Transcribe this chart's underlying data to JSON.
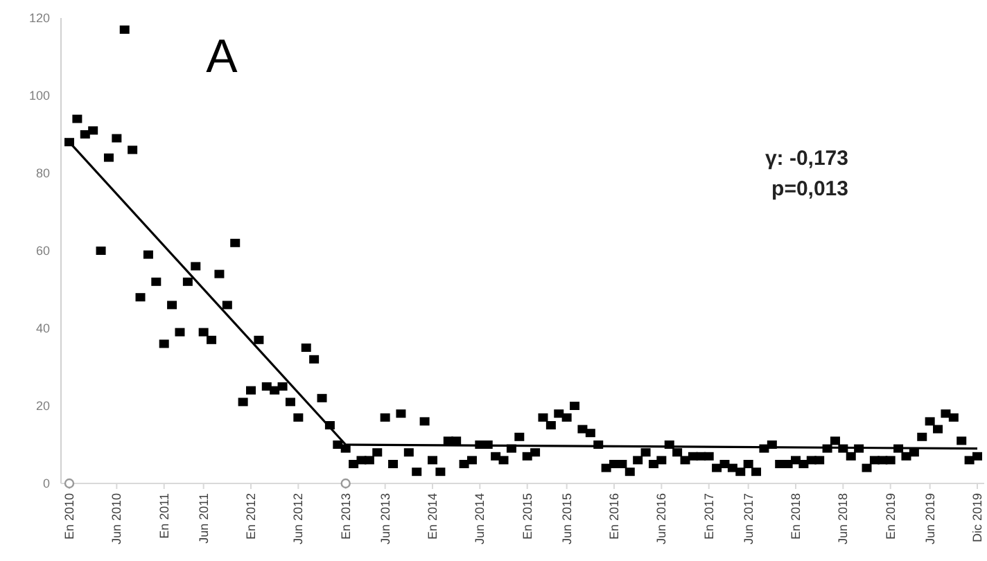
{
  "chart_data": {
    "type": "scatter",
    "title": "A",
    "annotations": [
      "γ: -0,173",
      "p=0,013"
    ],
    "categories": [
      "En 2010",
      null,
      null,
      null,
      null,
      null,
      "Jun 2010",
      null,
      null,
      null,
      null,
      null,
      "En 2011",
      null,
      null,
      null,
      null,
      "Jun 2011",
      null,
      null,
      null,
      null,
      null,
      "En 2012",
      null,
      null,
      null,
      null,
      null,
      "Jun 2012",
      null,
      null,
      null,
      null,
      null,
      "En 2013",
      null,
      null,
      null,
      null,
      "Jun 2013",
      null,
      null,
      null,
      null,
      null,
      "En 2014",
      null,
      null,
      null,
      null,
      null,
      "Jun 2014",
      null,
      null,
      null,
      null,
      null,
      "En 2015",
      null,
      null,
      null,
      null,
      "Jun 2015",
      null,
      null,
      null,
      null,
      null,
      "En 2016",
      null,
      null,
      null,
      null,
      null,
      "Jun 2016",
      null,
      null,
      null,
      null,
      null,
      "En 2017",
      null,
      null,
      null,
      null,
      "Jun 2017",
      null,
      null,
      null,
      null,
      null,
      "En 2018",
      null,
      null,
      null,
      null,
      null,
      "Jun 2018",
      null,
      null,
      null,
      null,
      null,
      "En 2019",
      null,
      null,
      null,
      null,
      "Jun 2019",
      null,
      null,
      null,
      null,
      null,
      "Dic 2019"
    ],
    "series": [
      {
        "marker": "square",
        "color": "#000000",
        "values": [
          88,
          94,
          90,
          91,
          60,
          84,
          89,
          117,
          86,
          48,
          59,
          52,
          36,
          46,
          39,
          52,
          56,
          39,
          37,
          54,
          46,
          62,
          21,
          24,
          37,
          25,
          24,
          25,
          21,
          17,
          35,
          32,
          22,
          15,
          10,
          9,
          5,
          6,
          6,
          8,
          17,
          5,
          18,
          8,
          3,
          16,
          6,
          3,
          11,
          11,
          5,
          6,
          10,
          10,
          7,
          6,
          9,
          12,
          7,
          8,
          17,
          15,
          18,
          17,
          20,
          14,
          13,
          10,
          4,
          5,
          5,
          3,
          6,
          8,
          5,
          6,
          10,
          8,
          6,
          7,
          7,
          7,
          4,
          5,
          4,
          3,
          5,
          3,
          9,
          10,
          5,
          5,
          6,
          5,
          6,
          6,
          9,
          11,
          9,
          7,
          9,
          4,
          6,
          6,
          6,
          9,
          7,
          8,
          12,
          16,
          14,
          18,
          17,
          11,
          6,
          7
        ]
      },
      {
        "type": "line",
        "color": "#000000",
        "values": [
          88,
          null,
          null,
          null,
          null,
          null,
          null,
          null,
          null,
          null,
          null,
          null,
          null,
          null,
          null,
          null,
          null,
          null,
          null,
          null,
          null,
          null,
          null,
          null,
          null,
          null,
          null,
          null,
          null,
          null,
          null,
          null,
          null,
          null,
          null,
          10,
          null,
          null,
          null,
          null,
          null,
          null,
          null,
          null,
          null,
          null,
          null,
          null,
          null,
          null,
          null,
          null,
          null,
          null,
          null,
          null,
          null,
          null,
          null,
          null,
          null,
          null,
          null,
          null,
          null,
          null,
          null,
          null,
          null,
          null,
          null,
          null,
          null,
          null,
          null,
          null,
          null,
          null,
          null,
          null,
          null,
          null,
          null,
          null,
          null,
          null,
          null,
          null,
          null,
          null,
          null,
          null,
          null,
          null,
          null,
          null,
          null,
          null,
          null,
          null,
          null,
          null,
          null,
          null,
          null,
          null,
          null,
          null,
          null,
          null,
          null,
          null,
          null,
          null,
          null,
          9
        ]
      },
      {
        "type": "scatter",
        "marker": "circle",
        "color": "#999999",
        "values": [
          0,
          null,
          null,
          null,
          null,
          null,
          null,
          null,
          null,
          null,
          null,
          null,
          null,
          null,
          null,
          null,
          null,
          null,
          null,
          null,
          null,
          null,
          null,
          null,
          null,
          null,
          null,
          null,
          null,
          null,
          null,
          null,
          null,
          null,
          null,
          0,
          null,
          null,
          null,
          null,
          null,
          null,
          null,
          null,
          null,
          null,
          null,
          null,
          null,
          null,
          null,
          null,
          null,
          null,
          null,
          null,
          null,
          null,
          null,
          null,
          null,
          null,
          null,
          null,
          null,
          null,
          null,
          null,
          null,
          null,
          null,
          null,
          null,
          null,
          null,
          null,
          null,
          null,
          null,
          null,
          null,
          null,
          null,
          null,
          null,
          null,
          null,
          null,
          null,
          null,
          null,
          null,
          null,
          null,
          null,
          null,
          null,
          null,
          null,
          null,
          null,
          null,
          null,
          null,
          null,
          null,
          null,
          null,
          null,
          null,
          null,
          null,
          null,
          null,
          null,
          null
        ]
      }
    ],
    "ylim": [
      0,
      120
    ],
    "yticks": [
      0,
      20,
      40,
      60,
      80,
      100,
      120
    ],
    "grid": false
  }
}
